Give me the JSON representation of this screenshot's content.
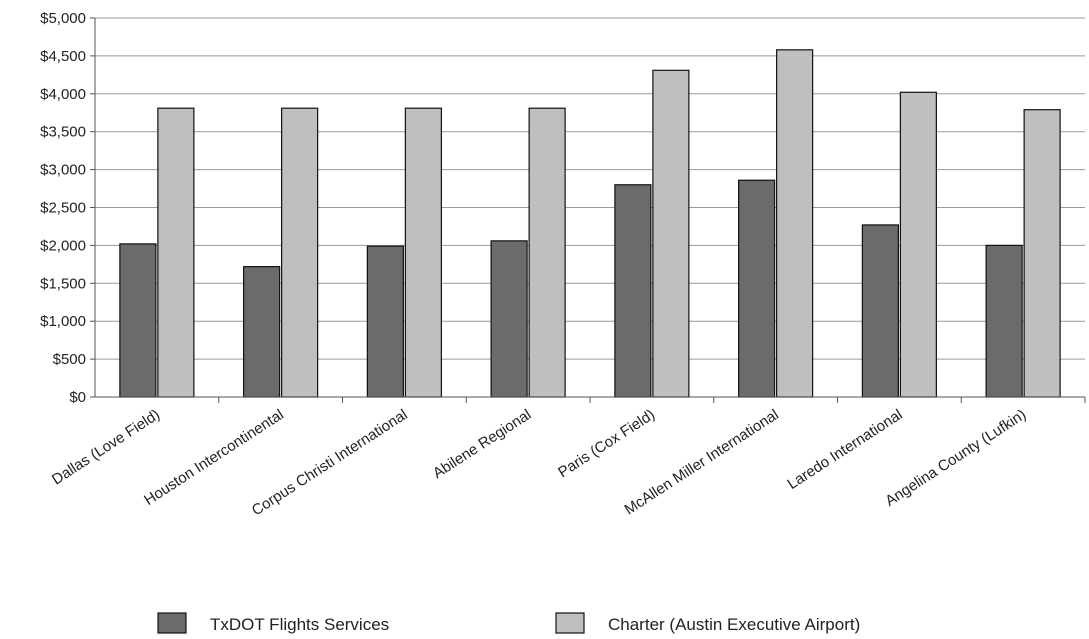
{
  "chart_data": {
    "type": "bar",
    "categories": [
      "Dallas (Love Field)",
      "Houston Intercontinental",
      "Corpus Christi International",
      "Abilene Regional",
      "Paris (Cox Field)",
      "McAllen Miller International",
      "Laredo International",
      "Angelina County (Lufkin)"
    ],
    "series": [
      {
        "name": "TxDOT Flights Services",
        "color": "#6b6b6b",
        "values": [
          2020,
          1720,
          1990,
          2060,
          2800,
          2860,
          2270,
          2000
        ]
      },
      {
        "name": "Charter (Austin Executive Airport)",
        "color": "#bfbfbf",
        "values": [
          3810,
          3810,
          3810,
          3810,
          4310,
          4580,
          4020,
          3790
        ]
      }
    ],
    "title": "",
    "xlabel": "",
    "ylabel": "",
    "ylim": [
      0,
      5000
    ],
    "yticks": [
      0,
      500,
      1000,
      1500,
      2000,
      2500,
      3000,
      3500,
      4000,
      4500,
      5000
    ],
    "ytick_labels": [
      "$0",
      "$500",
      "$1,000",
      "$1,500",
      "$2,000",
      "$2,500",
      "$3,000",
      "$3,500",
      "$4,000",
      "$4,500",
      "$5,000"
    ],
    "grid": true,
    "legend_position": "bottom"
  }
}
